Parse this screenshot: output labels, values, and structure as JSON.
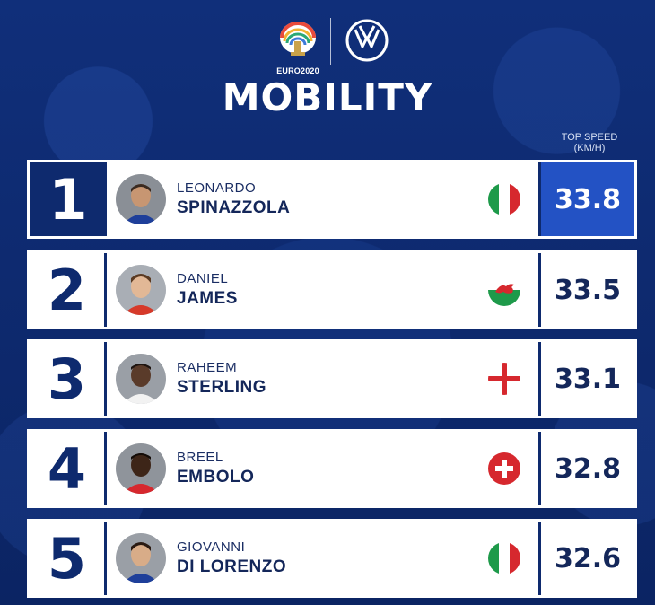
{
  "header": {
    "euro_logo_text": "EURO2020",
    "title": "MOBILITY",
    "speed_header_line1": "TOP SPEED",
    "speed_header_line2": "(KM/H)"
  },
  "rows": [
    {
      "rank": "1",
      "first": "LEONARDO",
      "last": "SPINAZZOLA",
      "speed": "33.8",
      "flag": "italy-flag-icon"
    },
    {
      "rank": "2",
      "first": "DANIEL",
      "last": "JAMES",
      "speed": "33.5",
      "flag": "wales-flag-icon"
    },
    {
      "rank": "3",
      "first": "RAHEEM",
      "last": "STERLING",
      "speed": "33.1",
      "flag": "england-flag-icon"
    },
    {
      "rank": "4",
      "first": "BREEL",
      "last": "EMBOLO",
      "speed": "32.8",
      "flag": "switzerland-flag-icon"
    },
    {
      "rank": "5",
      "first": "GIOVANNI",
      "last": "DI LORENZO",
      "speed": "32.6",
      "flag": "italy-flag-icon"
    }
  ],
  "colors": {
    "background": "#0e2a6e",
    "accent": "#2352c4",
    "text_dark": "#14275a"
  }
}
